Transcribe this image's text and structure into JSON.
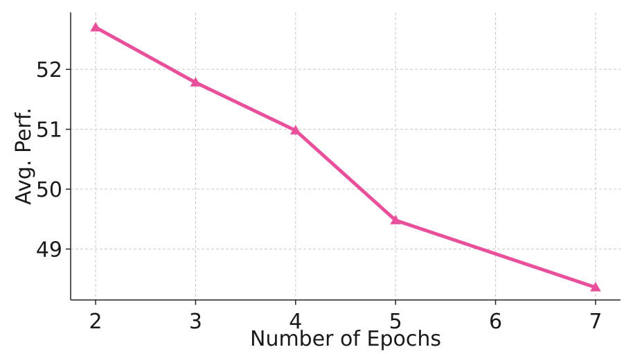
{
  "chart_data": {
    "type": "line",
    "title": "",
    "xlabel": "Number of Epochs",
    "ylabel": "Avg. Perf.",
    "x": [
      2,
      3,
      4,
      5,
      7
    ],
    "series": [
      {
        "values": [
          52.7,
          51.78,
          50.98,
          49.48,
          48.36
        ],
        "color": "#e9509b",
        "marker": "triangle-up"
      }
    ],
    "x_ticks": [
      "2",
      "3",
      "4",
      "5",
      "6",
      "7"
    ],
    "y_ticks": [
      "49",
      "50",
      "51",
      "52"
    ],
    "xlim": [
      1.75,
      7.25
    ],
    "ylim": [
      48.15,
      52.95
    ],
    "grid": true,
    "legend": "none"
  }
}
